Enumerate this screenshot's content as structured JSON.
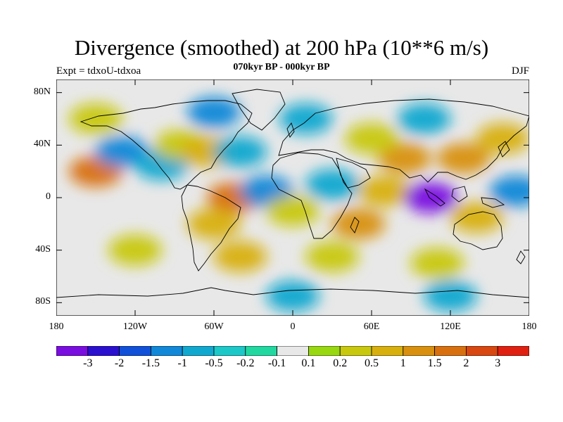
{
  "figure": {
    "title": "Divergence (smoothed) at 200 hPa (10**6 m/s)",
    "subtitle": "070kyr BP - 000kyr BP",
    "experiment": "Expt = tdxoU-tdxoa",
    "season": "DJF"
  },
  "axes": {
    "y_ticks": [
      {
        "label": "80N",
        "value": 80
      },
      {
        "label": "40N",
        "value": 40
      },
      {
        "label": "0",
        "value": 0
      },
      {
        "label": "40S",
        "value": -40
      },
      {
        "label": "80S",
        "value": -80
      }
    ],
    "x_ticks": [
      {
        "label": "180",
        "value": -180
      },
      {
        "label": "120W",
        "value": -120
      },
      {
        "label": "60W",
        "value": -60
      },
      {
        "label": "0",
        "value": 0
      },
      {
        "label": "60E",
        "value": 60
      },
      {
        "label": "120E",
        "value": 120
      },
      {
        "label": "180",
        "value": 180
      }
    ],
    "lon_range": [
      -180,
      180
    ],
    "lat_range": [
      -90,
      90
    ]
  },
  "colorbar": {
    "colors": [
      "#7a0ee0",
      "#2b10d0",
      "#1150d8",
      "#1188d8",
      "#11a8d0",
      "#1cc8c8",
      "#20d8a0",
      "#e8e8e8",
      "#98d810",
      "#c8c80e",
      "#d8b00e",
      "#d8900e",
      "#d87010",
      "#d84810",
      "#e02010"
    ],
    "labels": [
      "-3",
      "-2",
      "-1.5",
      "-1",
      "-0.5",
      "-0.2",
      "-0.1",
      "0.1",
      "0.2",
      "0.5",
      "1",
      "1.5",
      "2",
      "3"
    ]
  },
  "chart_data": {
    "type": "heatmap",
    "title": "Divergence (smoothed) at 200 hPa (10**6 m/s)",
    "subtitle": "070kyr BP - 000kyr BP",
    "xlim": [
      -180,
      180
    ],
    "ylim": [
      -90,
      90
    ],
    "levels": [
      -3,
      -2,
      -1.5,
      -1,
      -0.5,
      -0.2,
      -0.1,
      0.1,
      0.2,
      0.5,
      1,
      1.5,
      2,
      3
    ],
    "regions": [
      {
        "lon": -150,
        "lat": 20,
        "value": 2
      },
      {
        "lon": -130,
        "lat": 35,
        "value": -1
      },
      {
        "lon": -100,
        "lat": 25,
        "value": -0.5
      },
      {
        "lon": -85,
        "lat": 40,
        "value": 0.5
      },
      {
        "lon": -65,
        "lat": 35,
        "value": 1
      },
      {
        "lon": -40,
        "lat": 35,
        "value": -0.5
      },
      {
        "lon": -45,
        "lat": 0,
        "value": 2
      },
      {
        "lon": -60,
        "lat": -20,
        "value": 1
      },
      {
        "lon": -20,
        "lat": 5,
        "value": -1
      },
      {
        "lon": 0,
        "lat": -10,
        "value": 0.5
      },
      {
        "lon": 30,
        "lat": 10,
        "value": -0.5
      },
      {
        "lon": 50,
        "lat": -20,
        "value": 1.5
      },
      {
        "lon": 85,
        "lat": 30,
        "value": 1.5
      },
      {
        "lon": 70,
        "lat": 5,
        "value": 1
      },
      {
        "lon": 105,
        "lat": 0,
        "value": -3
      },
      {
        "lon": 130,
        "lat": 30,
        "value": 1.5
      },
      {
        "lon": 140,
        "lat": -15,
        "value": 1
      },
      {
        "lon": 160,
        "lat": 45,
        "value": 1
      },
      {
        "lon": 170,
        "lat": 5,
        "value": -1
      },
      {
        "lon": -120,
        "lat": -40,
        "value": 0.5
      },
      {
        "lon": -40,
        "lat": -45,
        "value": 1
      },
      {
        "lon": 30,
        "lat": -45,
        "value": 0.5
      },
      {
        "lon": 110,
        "lat": -50,
        "value": 0.5
      },
      {
        "lon": -150,
        "lat": 60,
        "value": 0.5
      },
      {
        "lon": -60,
        "lat": 65,
        "value": -1
      },
      {
        "lon": 10,
        "lat": 60,
        "value": -0.5
      },
      {
        "lon": 100,
        "lat": 60,
        "value": -0.5
      },
      {
        "lon": 60,
        "lat": 45,
        "value": 0.5
      },
      {
        "lon": 0,
        "lat": -75,
        "value": -0.5
      },
      {
        "lon": 120,
        "lat": -75,
        "value": -0.5
      }
    ]
  }
}
